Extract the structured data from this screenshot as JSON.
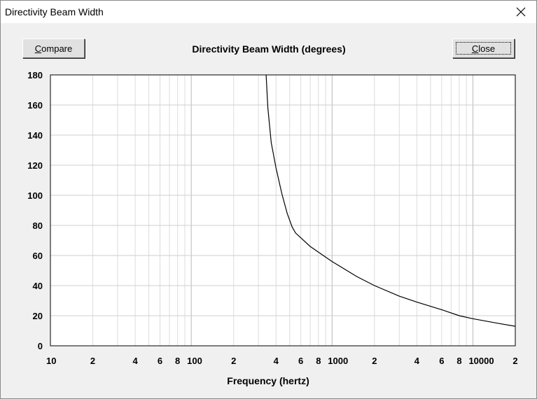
{
  "window": {
    "title": "Directivity Beam Width"
  },
  "toolbar": {
    "compare_label": "Compare",
    "close_label": "Close"
  },
  "chart_data": {
    "type": "line",
    "title": "Directivity Beam Width (degrees)",
    "xlabel": "Frequency (hertz)",
    "ylabel": "",
    "x_scale": "log",
    "xlim": [
      10,
      20000
    ],
    "ylim": [
      0,
      180
    ],
    "y_ticks": [
      "180",
      "160",
      "140",
      "120",
      "100",
      "80",
      "60",
      "40",
      "20",
      "0"
    ],
    "x_tick_labels": [
      {
        "v": 10,
        "label": "10"
      },
      {
        "v": 20,
        "label": "2"
      },
      {
        "v": 40,
        "label": "4"
      },
      {
        "v": 60,
        "label": "6"
      },
      {
        "v": 80,
        "label": "8"
      },
      {
        "v": 100,
        "label": "100"
      },
      {
        "v": 200,
        "label": "2"
      },
      {
        "v": 400,
        "label": "4"
      },
      {
        "v": 600,
        "label": "6"
      },
      {
        "v": 800,
        "label": "8"
      },
      {
        "v": 1000,
        "label": "1000"
      },
      {
        "v": 2000,
        "label": "2"
      },
      {
        "v": 4000,
        "label": "4"
      },
      {
        "v": 6000,
        "label": "6"
      },
      {
        "v": 8000,
        "label": "8"
      },
      {
        "v": 10000,
        "label": "10000"
      },
      {
        "v": 20000,
        "label": "2"
      }
    ],
    "grid": true,
    "series": [
      {
        "values": [
          {
            "x": 340,
            "y": 180
          },
          {
            "x": 350,
            "y": 158
          },
          {
            "x": 370,
            "y": 135
          },
          {
            "x": 400,
            "y": 118
          },
          {
            "x": 440,
            "y": 101
          },
          {
            "x": 480,
            "y": 88
          },
          {
            "x": 520,
            "y": 79
          },
          {
            "x": 550,
            "y": 75
          },
          {
            "x": 700,
            "y": 66
          },
          {
            "x": 1000,
            "y": 56
          },
          {
            "x": 1500,
            "y": 46
          },
          {
            "x": 2000,
            "y": 40
          },
          {
            "x": 3000,
            "y": 33
          },
          {
            "x": 4000,
            "y": 29
          },
          {
            "x": 6000,
            "y": 24
          },
          {
            "x": 8000,
            "y": 20
          },
          {
            "x": 10000,
            "y": 18
          },
          {
            "x": 15000,
            "y": 15
          },
          {
            "x": 20000,
            "y": 13
          }
        ]
      }
    ]
  }
}
